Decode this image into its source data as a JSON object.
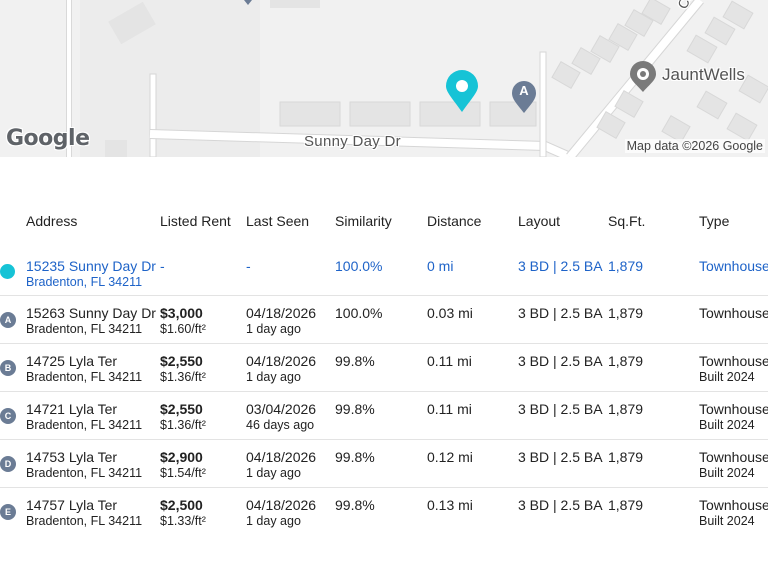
{
  "map": {
    "street_label": "Sunny Day Dr",
    "poi_label": "JauntWells",
    "side_street_label": "Cora",
    "attribution": "Map data ©2026 Google",
    "logo_text": "Google",
    "pin_a_letter": "A",
    "colors": {
      "subject_pin": "#16c3d6",
      "comp_pin": "#6b7c95",
      "background": "#f1f1f1",
      "building": "#e4e4e4",
      "road": "#ffffff"
    }
  },
  "table": {
    "headers": {
      "address": "Address",
      "rent": "Listed Rent",
      "seen": "Last Seen",
      "similarity": "Similarity",
      "distance": "Distance",
      "layout": "Layout",
      "sqft": "Sq.Ft.",
      "type": "Type"
    },
    "subject": {
      "street": "15235 Sunny Day Dr",
      "city": "Bradenton, FL 34211",
      "rent": "-",
      "seen": "-",
      "similarity": "100.0%",
      "distance": "0 mi",
      "layout": "3 BD | 2.5 BA",
      "sqft": "1,879",
      "type": "Townhouse"
    },
    "rows": [
      {
        "marker": "A",
        "street": "15263 Sunny Day Dr",
        "city": "Bradenton, FL 34211",
        "rent": "$3,000",
        "rent_sqft": "$1.60/ft²",
        "seen": "04/18/2026",
        "seen_ago": "1 day ago",
        "similarity": "100.0%",
        "distance": "0.03 mi",
        "layout": "3 BD | 2.5 BA",
        "sqft": "1,879",
        "type": "Townhouse",
        "built": ""
      },
      {
        "marker": "B",
        "street": "14725 Lyla Ter",
        "city": "Bradenton, FL 34211",
        "rent": "$2,550",
        "rent_sqft": "$1.36/ft²",
        "seen": "04/18/2026",
        "seen_ago": "1 day ago",
        "similarity": "99.8%",
        "distance": "0.11 mi",
        "layout": "3 BD | 2.5 BA",
        "sqft": "1,879",
        "type": "Townhouse",
        "built": "Built 2024"
      },
      {
        "marker": "C",
        "street": "14721 Lyla Ter",
        "city": "Bradenton, FL 34211",
        "rent": "$2,550",
        "rent_sqft": "$1.36/ft²",
        "seen": "03/04/2026",
        "seen_ago": "46 days ago",
        "similarity": "99.8%",
        "distance": "0.11 mi",
        "layout": "3 BD | 2.5 BA",
        "sqft": "1,879",
        "type": "Townhouse",
        "built": "Built 2024"
      },
      {
        "marker": "D",
        "street": "14753 Lyla Ter",
        "city": "Bradenton, FL 34211",
        "rent": "$2,900",
        "rent_sqft": "$1.54/ft²",
        "seen": "04/18/2026",
        "seen_ago": "1 day ago",
        "similarity": "99.8%",
        "distance": "0.12 mi",
        "layout": "3 BD | 2.5 BA",
        "sqft": "1,879",
        "type": "Townhouse",
        "built": "Built 2024"
      },
      {
        "marker": "E",
        "street": "14757 Lyla Ter",
        "city": "Bradenton, FL 34211",
        "rent": "$2,500",
        "rent_sqft": "$1.33/ft²",
        "seen": "04/18/2026",
        "seen_ago": "1 day ago",
        "similarity": "99.8%",
        "distance": "0.13 mi",
        "layout": "3 BD | 2.5 BA",
        "sqft": "1,879",
        "type": "Townhouse",
        "built": "Built 2024"
      }
    ]
  }
}
